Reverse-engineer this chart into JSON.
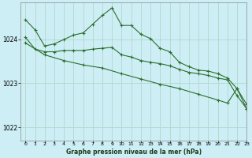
{
  "title": "Graphe pression niveau de la mer (hPa)",
  "bg_color": "#cdeef5",
  "grid_color": "#b0d8cc",
  "line_color": "#2d6e2d",
  "xlim": [
    -0.5,
    23
  ],
  "ylim": [
    1021.7,
    1024.85
  ],
  "yticks": [
    1022,
    1023,
    1024
  ],
  "xticks": [
    0,
    1,
    2,
    3,
    4,
    5,
    6,
    7,
    8,
    9,
    10,
    11,
    12,
    13,
    14,
    15,
    16,
    17,
    18,
    19,
    20,
    21,
    22,
    23
  ],
  "series": [
    {
      "x": [
        0,
        1,
        2,
        3,
        4,
        5,
        6,
        7,
        8,
        9,
        10,
        11,
        12,
        13,
        14,
        15,
        16,
        17,
        18,
        19,
        20,
        21,
        22,
        23
      ],
      "y": [
        1024.45,
        1024.22,
        1023.85,
        1023.9,
        1024.0,
        1024.1,
        1024.15,
        1024.35,
        1024.55,
        1024.72,
        1024.32,
        1024.32,
        1024.12,
        1024.02,
        1023.8,
        1023.72,
        1023.48,
        1023.38,
        1023.3,
        1023.28,
        1023.22,
        1023.12,
        1022.88,
        1022.52
      ]
    },
    {
      "x": [
        0,
        1,
        2,
        3,
        4,
        5,
        6,
        7,
        8,
        9,
        10,
        11,
        12,
        13,
        14,
        15,
        16,
        17,
        18,
        19,
        20,
        21,
        22,
        23
      ],
      "y": [
        1024.05,
        1023.78,
        1023.72,
        1023.72,
        1023.75,
        1023.75,
        1023.75,
        1023.78,
        1023.8,
        1023.82,
        1023.65,
        1023.6,
        1023.52,
        1023.48,
        1023.45,
        1023.4,
        1023.32,
        1023.25,
        1023.22,
        1023.18,
        1023.12,
        1023.08,
        1022.72,
        1022.42
      ]
    },
    {
      "x": [
        0,
        2,
        4,
        6,
        8,
        10,
        12,
        14,
        16,
        18,
        20,
        21,
        22,
        23
      ],
      "y": [
        1023.92,
        1023.65,
        1023.52,
        1023.42,
        1023.35,
        1023.22,
        1023.1,
        1022.98,
        1022.88,
        1022.75,
        1022.62,
        1022.55,
        1022.88,
        1022.42
      ]
    }
  ]
}
